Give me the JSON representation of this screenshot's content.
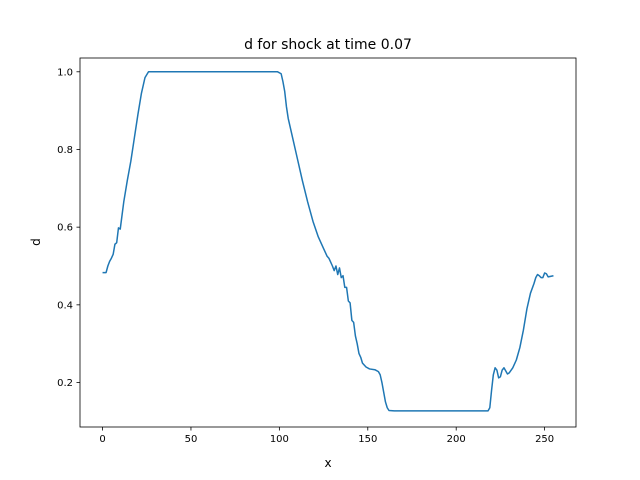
{
  "chart_data": {
    "type": "line",
    "title": "d for shock at time 0.07",
    "xlabel": "x",
    "ylabel": "d",
    "xlim": [
      -12.75,
      267.75
    ],
    "ylim": [
      0.0855,
      1.0355
    ],
    "grid": false,
    "legend": "none",
    "x_ticks": [
      0,
      50,
      100,
      150,
      200,
      250
    ],
    "y_ticks": [
      0.2,
      0.4,
      0.6,
      0.8,
      1.0
    ],
    "x_tick_labels": [
      "0",
      "50",
      "100",
      "150",
      "200",
      "250"
    ],
    "y_tick_labels": [
      "0.2",
      "0.4",
      "0.6",
      "0.8",
      "1.0"
    ],
    "series": [
      {
        "color": "#1f77b4",
        "points": [
          [
            0,
            0.483
          ],
          [
            2,
            0.483
          ],
          [
            3,
            0.5
          ],
          [
            4,
            0.512
          ],
          [
            5,
            0.52
          ],
          [
            6,
            0.53
          ],
          [
            7,
            0.556
          ],
          [
            8,
            0.56
          ],
          [
            9,
            0.598
          ],
          [
            10,
            0.595
          ],
          [
            11,
            0.63
          ],
          [
            12,
            0.665
          ],
          [
            14,
            0.72
          ],
          [
            16,
            0.77
          ],
          [
            18,
            0.83
          ],
          [
            20,
            0.89
          ],
          [
            22,
            0.945
          ],
          [
            24,
            0.985
          ],
          [
            26,
            1.0
          ],
          [
            30,
            1.0
          ],
          [
            50,
            1.0
          ],
          [
            80,
            1.0
          ],
          [
            99,
            1.0
          ],
          [
            101,
            0.995
          ],
          [
            102,
            0.975
          ],
          [
            103,
            0.95
          ],
          [
            104,
            0.91
          ],
          [
            105,
            0.88
          ],
          [
            107,
            0.84
          ],
          [
            110,
            0.78
          ],
          [
            113,
            0.72
          ],
          [
            116,
            0.665
          ],
          [
            119,
            0.615
          ],
          [
            122,
            0.575
          ],
          [
            125,
            0.545
          ],
          [
            127,
            0.525
          ],
          [
            128,
            0.52
          ],
          [
            129,
            0.51
          ],
          [
            130,
            0.5
          ],
          [
            131,
            0.488
          ],
          [
            132,
            0.5
          ],
          [
            133,
            0.478
          ],
          [
            134,
            0.495
          ],
          [
            135,
            0.47
          ],
          [
            136,
            0.475
          ],
          [
            137,
            0.445
          ],
          [
            138,
            0.445
          ],
          [
            139,
            0.41
          ],
          [
            140,
            0.405
          ],
          [
            141,
            0.36
          ],
          [
            142,
            0.355
          ],
          [
            143,
            0.32
          ],
          [
            144,
            0.3
          ],
          [
            145,
            0.275
          ],
          [
            146,
            0.265
          ],
          [
            147,
            0.25
          ],
          [
            149,
            0.24
          ],
          [
            151,
            0.235
          ],
          [
            154,
            0.233
          ],
          [
            156,
            0.228
          ],
          [
            157,
            0.22
          ],
          [
            158,
            0.2
          ],
          [
            159,
            0.175
          ],
          [
            160,
            0.15
          ],
          [
            161,
            0.135
          ],
          [
            162,
            0.128
          ],
          [
            165,
            0.127
          ],
          [
            180,
            0.127
          ],
          [
            200,
            0.127
          ],
          [
            218,
            0.127
          ],
          [
            219,
            0.135
          ],
          [
            220,
            0.18
          ],
          [
            221,
            0.22
          ],
          [
            222,
            0.238
          ],
          [
            223,
            0.232
          ],
          [
            224,
            0.212
          ],
          [
            225,
            0.215
          ],
          [
            226,
            0.232
          ],
          [
            227,
            0.238
          ],
          [
            228,
            0.23
          ],
          [
            229,
            0.222
          ],
          [
            230,
            0.225
          ],
          [
            232,
            0.238
          ],
          [
            234,
            0.258
          ],
          [
            236,
            0.29
          ],
          [
            238,
            0.335
          ],
          [
            240,
            0.39
          ],
          [
            242,
            0.43
          ],
          [
            244,
            0.455
          ],
          [
            245,
            0.47
          ],
          [
            246,
            0.478
          ],
          [
            247,
            0.475
          ],
          [
            248,
            0.47
          ],
          [
            249,
            0.47
          ],
          [
            250,
            0.482
          ],
          [
            251,
            0.48
          ],
          [
            252,
            0.472
          ],
          [
            254,
            0.474
          ],
          [
            255,
            0.475
          ]
        ]
      }
    ]
  }
}
